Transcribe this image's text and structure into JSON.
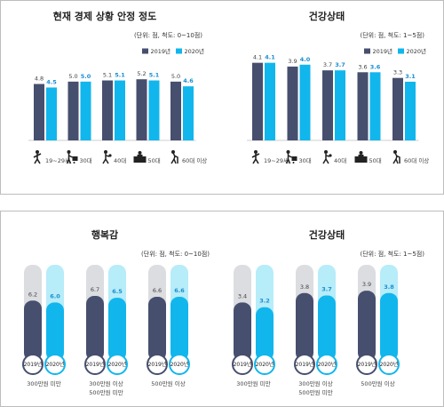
{
  "chart_data": [
    {
      "type": "bar",
      "title": "현재 경제 상황 안정 정도",
      "unit_note": "(단위: 점, 척도: 0~10점)",
      "categories": [
        "19~29세",
        "30대",
        "40대",
        "50대",
        "60대 이상"
      ],
      "series": [
        {
          "name": "2019년",
          "values": [
            4.8,
            5.0,
            5.1,
            5.2,
            5.0
          ]
        },
        {
          "name": "2020년",
          "values": [
            4.5,
            5.0,
            5.1,
            5.1,
            4.6
          ]
        }
      ],
      "legend": "top-right"
    },
    {
      "type": "bar",
      "title": "건강상태",
      "unit_note": "(단위: 점, 척도: 1~5점)",
      "categories": [
        "19~29세",
        "30대",
        "40대",
        "50대",
        "60대 이상"
      ],
      "series": [
        {
          "name": "2019년",
          "values": [
            4.1,
            3.9,
            3.7,
            3.6,
            3.3
          ]
        },
        {
          "name": "2020년",
          "values": [
            4.1,
            4.0,
            3.7,
            3.6,
            3.1
          ]
        }
      ],
      "legend": "top-right"
    },
    {
      "type": "bar",
      "title": "행복감",
      "unit_note": "(단위: 점, 척도: 0~10점)",
      "categories": [
        "300만원 미만",
        "300만원 이상 500만원 미만",
        "500만원 이상"
      ],
      "series": [
        {
          "name": "2019년",
          "values": [
            6.2,
            6.7,
            6.6
          ]
        },
        {
          "name": "2020년",
          "values": [
            6.0,
            6.5,
            6.6
          ]
        }
      ],
      "ylim": [
        0,
        10
      ]
    },
    {
      "type": "bar",
      "title": "건강상태",
      "unit_note": "(단위: 점, 척도: 1~5점)",
      "categories": [
        "300만원 미만",
        "300만원 이상 500만원 미만",
        "500만원 이상"
      ],
      "series": [
        {
          "name": "2019년",
          "values": [
            3.4,
            3.8,
            3.9
          ]
        },
        {
          "name": "2020년",
          "values": [
            3.2,
            3.7,
            3.8
          ]
        }
      ],
      "ylim": [
        1,
        5
      ]
    }
  ],
  "category_icons": [
    "walking-person-icon",
    "person-with-cart-icon",
    "person-with-baby-icon",
    "person-at-desk-icon",
    "elderly-person-with-cane-icon"
  ],
  "colors": {
    "series_2019": "#474f6e",
    "series_2020": "#11b6ec",
    "track_2019": "#dcdde1",
    "track_2020": "#b7ecf9",
    "value_2020_text": "#1a8fd0"
  }
}
